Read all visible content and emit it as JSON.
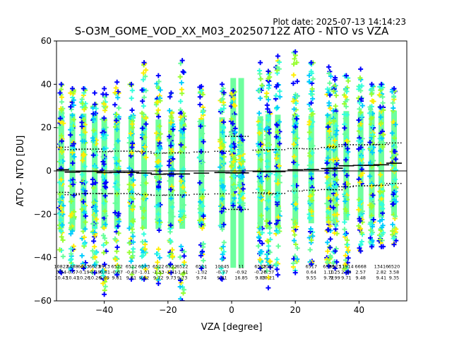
{
  "chart_data": {
    "type": "scatter",
    "plot_date": "Plot date: 2025-07-13 14:14:23",
    "title": "S-O3M_GOME_VOD_XX_M03_20250712Z ATO - NTO vs VZA",
    "xlabel": "VZA [degree]",
    "ylabel": "ATO - NTO [DU]",
    "xlim": [
      -55,
      55
    ],
    "ylim": [
      -60,
      60
    ],
    "xticks": [
      -40,
      -20,
      0,
      20,
      40
    ],
    "yticks": [
      -60,
      -40,
      -20,
      0,
      20,
      40,
      60
    ],
    "zero_line": 0,
    "marker": "+",
    "point_colors": [
      "#66ff99",
      "#00ccff",
      "#ffee00",
      "#0000ff",
      "#99ff33",
      "#33ffdd"
    ],
    "columns": [
      {
        "vza": -53.5,
        "n": "10822",
        "mean": 0.54,
        "sd": 10.43,
        "ymin": -47,
        "ymax": 40
      },
      {
        "vza": -50.0,
        "n": "6488",
        "mean": -0.57,
        "sd": 10.41,
        "ymin": -46,
        "ymax": 38
      },
      {
        "vza": -46.5,
        "n": "6623",
        "mean": -0.19,
        "sd": 10.26,
        "ymin": -45,
        "ymax": 38
      },
      {
        "vza": -43.0,
        "n": "6623",
        "mean": -0.19,
        "sd": 10.26,
        "ymin": -47,
        "ymax": 36
      },
      {
        "vza": -40.0,
        "n": "8913",
        "mean": -0.81,
        "sd": 9.69,
        "ymin": -57,
        "ymax": 38
      },
      {
        "vza": -36.0,
        "n": "6522",
        "mean": -0.67,
        "sd": 9.81,
        "ymin": -48,
        "ymax": 41
      },
      {
        "vza": -31.5,
        "n": "6522",
        "mean": -0.67,
        "sd": 9.81,
        "ymin": -50,
        "ymax": 40
      },
      {
        "vza": -27.5,
        "n": "6523",
        "mean": -1.01,
        "sd": 9.92,
        "ymin": -50,
        "ymax": 50
      },
      {
        "vza": -23.0,
        "n": "6522",
        "mean": -1.53,
        "sd": 9.72,
        "ymin": -52,
        "ymax": 44
      },
      {
        "vza": -19.0,
        "n": "6522",
        "mean": -1.41,
        "sd": 9.73,
        "ymin": -47,
        "ymax": 36
      },
      {
        "vza": -15.5,
        "n": "6522",
        "mean": -1.41,
        "sd": 9.73,
        "ymin": -60,
        "ymax": 51
      },
      {
        "vza": -9.5,
        "n": "6521",
        "mean": -1.02,
        "sd": 9.74,
        "ymin": -45,
        "ymax": 39
      },
      {
        "vza": -3.0,
        "n": "10045",
        "mean": -0.77,
        "sd": 9.81,
        "ymin": -50,
        "ymax": 40
      },
      {
        "vza": 0.5,
        "n": "",
        "mean": -0.92,
        "sd": 16.85,
        "ymin": -16,
        "ymax": 37
      },
      {
        "vza": 3.0,
        "n": "11",
        "mean": -0.92,
        "sd": 16.85,
        "ymin": -18,
        "ymax": 16
      },
      {
        "vza": 9.0,
        "n": "6522",
        "mean": -0.27,
        "sd": 9.83,
        "ymin": -45,
        "ymax": 50
      },
      {
        "vza": 11.5,
        "n": "7092",
        "mean": -0.37,
        "sd": 10.21,
        "ymin": -54,
        "ymax": 46
      },
      {
        "vza": 14.5,
        "n": "",
        "mean": -0.3,
        "sd": 10.1,
        "ymin": -48,
        "ymax": 53
      },
      {
        "vza": 20.0,
        "n": "",
        "mean": 0.5,
        "sd": 9.8,
        "ymin": -47,
        "ymax": 55
      },
      {
        "vza": 25.0,
        "n": "6517",
        "mean": 0.64,
        "sd": 9.55,
        "ymin": -43,
        "ymax": 50
      },
      {
        "vza": 30.5,
        "n": "6519",
        "mean": 1.1,
        "sd": 9.72,
        "ymin": -44,
        "ymax": 48
      },
      {
        "vza": 32.5,
        "n": "6523",
        "mean": 1.25,
        "sd": 9.99,
        "ymin": -45,
        "ymax": 43
      },
      {
        "vza": 36.0,
        "n": "11914",
        "mean": 2.4,
        "sd": 9.71,
        "ymin": -47,
        "ymax": 44
      },
      {
        "vza": 40.5,
        "n": "6668",
        "mean": 2.57,
        "sd": 9.48,
        "ymin": -37,
        "ymax": 47
      },
      {
        "vza": 44.0,
        "n": "",
        "mean": 2.6,
        "sd": 9.45,
        "ymin": -35,
        "ymax": 40
      },
      {
        "vza": 47.0,
        "n": "13416",
        "mean": 2.82,
        "sd": 9.41,
        "ymin": -35,
        "ymax": 40
      },
      {
        "vza": 51.0,
        "n": "6520",
        "mean": 3.58,
        "sd": 9.35,
        "ymin": -34,
        "ymax": 38
      }
    ]
  }
}
